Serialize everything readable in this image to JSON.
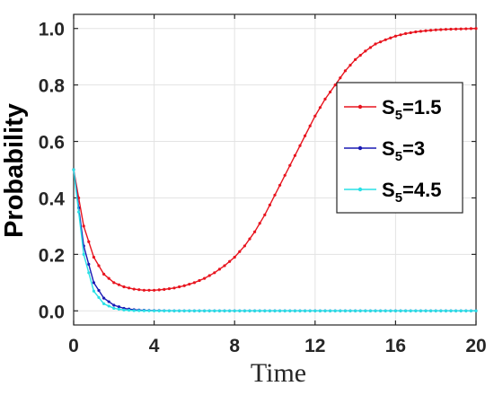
{
  "chart_data": {
    "type": "line",
    "xlabel": "Time",
    "ylabel": "Probability",
    "xlim": [
      0,
      20
    ],
    "ylim": [
      -0.05,
      1.05
    ],
    "x_ticks": [
      0,
      4,
      8,
      12,
      16,
      20
    ],
    "y_ticks": [
      "0.0",
      "0.2",
      "0.4",
      "0.6",
      "0.8",
      "1.0"
    ],
    "grid": true,
    "legend_position": "right",
    "x": [
      0,
      0.5,
      1,
      1.5,
      2,
      2.5,
      3,
      3.5,
      4,
      4.5,
      5,
      5.5,
      6,
      6.5,
      7,
      7.5,
      8,
      8.5,
      9,
      9.5,
      10,
      10.5,
      11,
      11.5,
      12,
      12.5,
      13,
      13.5,
      14,
      14.5,
      15,
      15.5,
      16,
      16.5,
      17,
      17.5,
      18,
      18.5,
      19,
      19.5,
      20
    ],
    "series": [
      {
        "name_main": "S",
        "name_sub": "5",
        "name_rest": "=1.5",
        "color": "#e8141e",
        "values": [
          0.5,
          0.3,
          0.19,
          0.13,
          0.1,
          0.085,
          0.077,
          0.073,
          0.073,
          0.076,
          0.081,
          0.089,
          0.1,
          0.115,
          0.135,
          0.16,
          0.19,
          0.23,
          0.28,
          0.34,
          0.41,
          0.48,
          0.55,
          0.62,
          0.69,
          0.75,
          0.8,
          0.85,
          0.89,
          0.92,
          0.945,
          0.96,
          0.973,
          0.982,
          0.988,
          0.992,
          0.995,
          0.997,
          0.998,
          0.999,
          1.0
        ]
      },
      {
        "name_main": "S",
        "name_sub": "5",
        "name_rest": "=3",
        "color": "#1a1ab4",
        "values": [
          0.5,
          0.23,
          0.1,
          0.045,
          0.02,
          0.009,
          0.004,
          0.002,
          0.001,
          0.0005,
          0.0002,
          0.0001,
          0,
          0,
          0,
          0,
          0,
          0,
          0,
          0,
          0,
          0,
          0,
          0,
          0,
          0,
          0,
          0,
          0,
          0,
          0,
          0,
          0,
          0,
          0,
          0,
          0,
          0,
          0,
          0,
          0
        ]
      },
      {
        "name_main": "S",
        "name_sub": "5",
        "name_rest": "=4.5",
        "color": "#29e0e6",
        "values": [
          0.5,
          0.2,
          0.07,
          0.025,
          0.009,
          0.003,
          0.001,
          0.0005,
          0.0002,
          0.0001,
          0,
          0,
          0,
          0,
          0,
          0,
          0,
          0,
          0,
          0,
          0,
          0,
          0,
          0,
          0,
          0,
          0,
          0,
          0,
          0,
          0,
          0,
          0,
          0,
          0,
          0,
          0,
          0,
          0,
          0,
          0
        ]
      }
    ]
  }
}
